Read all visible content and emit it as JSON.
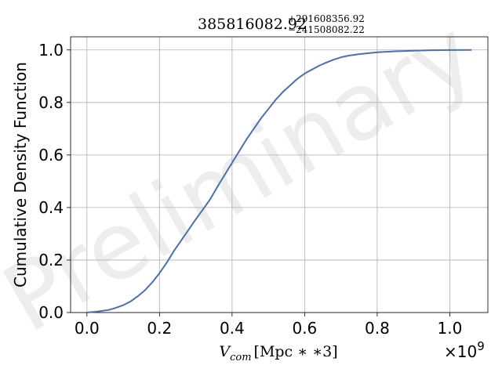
{
  "chart_data": {
    "type": "line",
    "title": {
      "value": "385816082.92",
      "upper": "+291608356.92",
      "lower": "−241508082.22"
    },
    "xlabel": {
      "symbol": "V",
      "subscript": "com",
      "unit": "[Mpc ∗ ∗3]"
    },
    "ylabel": "Cumulative Density Function",
    "x_offset_label": "×10",
    "x_offset_exponent": "9",
    "watermark": "Preliminary",
    "xlim": [
      -0.045,
      1.105
    ],
    "ylim": [
      0,
      1.05
    ],
    "xticks": [
      0.0,
      0.2,
      0.4,
      0.6,
      0.8,
      1.0
    ],
    "xtick_labels": [
      "0.0",
      "0.2",
      "0.4",
      "0.6",
      "0.8",
      "1.0"
    ],
    "yticks": [
      0.0,
      0.2,
      0.4,
      0.6,
      0.8,
      1.0
    ],
    "ytick_labels": [
      "0.0",
      "0.2",
      "0.4",
      "0.6",
      "0.8",
      "1.0"
    ],
    "x_unit_multiplier": "1e9",
    "grid": true,
    "series": [
      {
        "color": "#4c6fb0",
        "x": [
          0.0,
          0.03,
          0.06,
          0.08,
          0.1,
          0.12,
          0.14,
          0.16,
          0.18,
          0.2,
          0.22,
          0.24,
          0.26,
          0.28,
          0.3,
          0.32,
          0.34,
          0.36,
          0.38,
          0.4,
          0.42,
          0.44,
          0.46,
          0.48,
          0.5,
          0.52,
          0.54,
          0.56,
          0.58,
          0.6,
          0.62,
          0.64,
          0.66,
          0.68,
          0.7,
          0.72,
          0.75,
          0.8,
          0.85,
          0.9,
          0.95,
          1.0,
          1.06
        ],
        "y": [
          0.0,
          0.004,
          0.01,
          0.018,
          0.028,
          0.042,
          0.062,
          0.085,
          0.115,
          0.15,
          0.19,
          0.235,
          0.275,
          0.315,
          0.355,
          0.393,
          0.432,
          0.48,
          0.525,
          0.57,
          0.615,
          0.66,
          0.7,
          0.74,
          0.775,
          0.81,
          0.84,
          0.865,
          0.89,
          0.91,
          0.925,
          0.94,
          0.952,
          0.963,
          0.972,
          0.978,
          0.984,
          0.991,
          0.995,
          0.997,
          0.999,
          0.9995,
          1.0
        ]
      }
    ]
  }
}
